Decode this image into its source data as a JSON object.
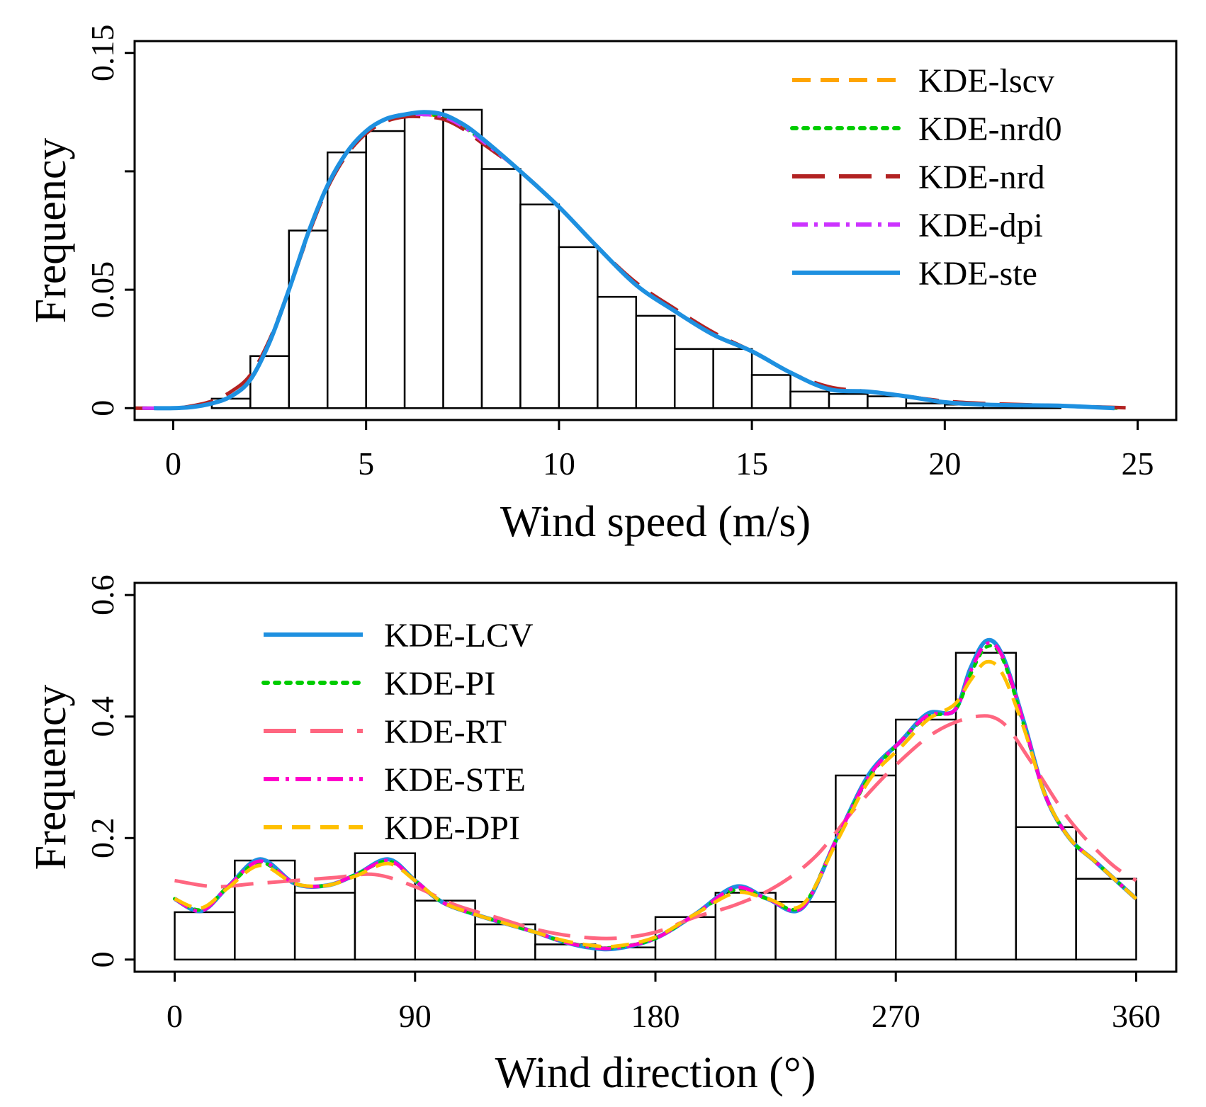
{
  "chart_data": [
    {
      "type": "bar",
      "name": "wind-speed",
      "xlabel": "Wind speed (m/s)",
      "ylabel": "Frequency",
      "xlim": [
        -1,
        26
      ],
      "ylim": [
        -0.005,
        0.155
      ],
      "xticks": [
        0,
        5,
        10,
        15,
        20,
        25
      ],
      "xtick_labels": [
        "0",
        "5",
        "10",
        "15",
        "20",
        "25"
      ],
      "yticks": [
        0,
        0.05,
        0.15
      ],
      "ytick_labels": [
        "0",
        "0.05",
        "0.15"
      ],
      "y_minor_ticks": [
        0.1
      ],
      "grid": false,
      "legend_position": "top-right",
      "bin_edges": [
        1,
        2,
        3,
        4,
        5,
        6,
        7,
        8,
        9,
        10,
        11,
        12,
        13,
        14,
        15,
        16,
        17,
        18,
        19,
        20,
        21,
        22,
        23
      ],
      "values": [
        0.004,
        0.022,
        0.075,
        0.108,
        0.117,
        0.124,
        0.126,
        0.101,
        0.086,
        0.068,
        0.047,
        0.039,
        0.025,
        0.025,
        0.014,
        0.007,
        0.006,
        0.005,
        0.002,
        0.0015,
        0.0012,
        0.0012
      ],
      "series": [
        {
          "name": "KDE-lscv",
          "color": "#FFA500",
          "dash": "dashed",
          "x": [
            -0.8,
            0,
            0.5,
            1,
            1.5,
            2,
            2.5,
            3,
            3.5,
            4,
            4.5,
            5,
            5.5,
            6,
            6.5,
            7,
            7.5,
            8,
            9,
            10,
            11,
            12,
            13,
            14,
            15,
            16,
            17,
            18,
            19,
            20,
            21,
            22,
            23,
            24.5
          ],
          "y": [
            0,
            0,
            0.0005,
            0.002,
            0.005,
            0.012,
            0.028,
            0.05,
            0.074,
            0.094,
            0.108,
            0.117,
            0.122,
            0.124,
            0.124,
            0.123,
            0.119,
            0.113,
            0.1,
            0.085,
            0.068,
            0.052,
            0.041,
            0.031,
            0.024,
            0.015,
            0.008,
            0.007,
            0.005,
            0.0025,
            0.0015,
            0.0012,
            0.001,
            0
          ]
        },
        {
          "name": "KDE-nrd0",
          "color": "#00CC00",
          "dash": "dotted",
          "x": [
            -0.8,
            0,
            0.5,
            1,
            1.5,
            2,
            2.5,
            3,
            3.5,
            4,
            4.5,
            5,
            5.5,
            6,
            6.5,
            7,
            7.5,
            8,
            9,
            10,
            11,
            12,
            13,
            14,
            15,
            16,
            17,
            18,
            19,
            20,
            21,
            22,
            23,
            24.5
          ],
          "y": [
            0,
            0,
            0.0005,
            0.002,
            0.005,
            0.012,
            0.028,
            0.05,
            0.074,
            0.094,
            0.108,
            0.117,
            0.122,
            0.124,
            0.124,
            0.123,
            0.119,
            0.113,
            0.1,
            0.085,
            0.068,
            0.052,
            0.041,
            0.031,
            0.024,
            0.015,
            0.008,
            0.007,
            0.005,
            0.0025,
            0.0015,
            0.0012,
            0.001,
            0
          ]
        },
        {
          "name": "KDE-nrd",
          "color": "#B22222",
          "dash": "longdash",
          "x": [
            -1,
            0,
            0.5,
            1,
            1.5,
            2,
            2.5,
            3,
            3.5,
            4,
            4.5,
            5,
            5.5,
            6,
            6.5,
            7,
            7.5,
            8,
            9,
            10,
            11,
            12,
            13,
            14,
            15,
            16,
            17,
            18,
            19,
            20,
            21,
            22,
            23,
            25
          ],
          "y": [
            0,
            0,
            0.001,
            0.003,
            0.007,
            0.014,
            0.029,
            0.05,
            0.073,
            0.093,
            0.107,
            0.116,
            0.121,
            0.123,
            0.123,
            0.122,
            0.118,
            0.112,
            0.1,
            0.085,
            0.068,
            0.053,
            0.042,
            0.032,
            0.024,
            0.015,
            0.009,
            0.007,
            0.005,
            0.003,
            0.002,
            0.0015,
            0.001,
            0
          ]
        },
        {
          "name": "KDE-dpi",
          "color": "#CC33FF",
          "dash": "dashdot",
          "x": [
            -0.8,
            0,
            0.5,
            1,
            1.5,
            2,
            2.5,
            3,
            3.5,
            4,
            4.5,
            5,
            5.5,
            6,
            6.5,
            7,
            7.5,
            8,
            9,
            10,
            11,
            12,
            13,
            14,
            15,
            16,
            17,
            18,
            19,
            20,
            21,
            22,
            23,
            24.5
          ],
          "y": [
            0,
            0,
            0.0005,
            0.002,
            0.005,
            0.012,
            0.028,
            0.05,
            0.074,
            0.094,
            0.108,
            0.117,
            0.122,
            0.124,
            0.124,
            0.123,
            0.119,
            0.113,
            0.1,
            0.085,
            0.068,
            0.052,
            0.041,
            0.031,
            0.024,
            0.015,
            0.008,
            0.007,
            0.005,
            0.0025,
            0.0015,
            0.0012,
            0.001,
            0
          ]
        },
        {
          "name": "KDE-ste",
          "color": "#1E90E0",
          "dash": "solid",
          "x": [
            -0.5,
            0,
            0.5,
            1,
            1.5,
            2,
            2.5,
            3,
            3.5,
            4,
            4.5,
            5,
            5.5,
            6,
            6.5,
            7,
            7.5,
            8,
            9,
            10,
            11,
            12,
            13,
            14,
            15,
            16,
            17,
            18,
            19,
            20,
            21,
            22,
            23,
            24.4
          ],
          "y": [
            0,
            0,
            0.0005,
            0.002,
            0.005,
            0.012,
            0.028,
            0.05,
            0.074,
            0.094,
            0.108,
            0.117,
            0.122,
            0.124,
            0.125,
            0.124,
            0.12,
            0.114,
            0.1,
            0.085,
            0.068,
            0.052,
            0.041,
            0.031,
            0.024,
            0.015,
            0.008,
            0.007,
            0.005,
            0.0025,
            0.0015,
            0.0012,
            0.001,
            0
          ]
        }
      ]
    },
    {
      "type": "bar",
      "name": "wind-direction",
      "xlabel": "Wind direction (°)",
      "ylabel": "Frequency",
      "xlim": [
        -15,
        375
      ],
      "ylim": [
        -0.02,
        0.62
      ],
      "xticks": [
        0,
        90,
        180,
        270,
        360
      ],
      "xtick_labels": [
        "0",
        "90",
        "180",
        "270",
        "360"
      ],
      "yticks": [
        0,
        0.2,
        0.4,
        0.6
      ],
      "ytick_labels": [
        "0",
        "0.2",
        "0.4",
        "0.6"
      ],
      "grid": false,
      "legend_position": "top-left",
      "bin_edges": [
        0,
        22.5,
        45,
        67.5,
        90,
        112.5,
        135,
        157.5,
        180,
        202.5,
        225,
        247.5,
        270,
        292.5,
        315,
        337.5,
        360
      ],
      "values": [
        0.078,
        0.163,
        0.11,
        0.175,
        0.097,
        0.058,
        0.025,
        0.02,
        0.07,
        0.11,
        0.095,
        0.303,
        0.395,
        0.505,
        0.218,
        0.133
      ],
      "series": [
        {
          "name": "KDE-LCV",
          "color": "#1E90E0",
          "dash": "solid",
          "x": [
            0,
            10,
            20,
            32,
            45,
            57,
            68,
            80,
            90,
            100,
            112,
            125,
            135,
            145,
            155,
            165,
            180,
            195,
            210,
            222,
            235,
            248,
            260,
            272,
            282,
            292,
            298,
            304,
            310,
            318,
            326,
            335,
            345,
            360
          ],
          "y": [
            0.1,
            0.08,
            0.12,
            0.165,
            0.125,
            0.122,
            0.14,
            0.165,
            0.13,
            0.095,
            0.075,
            0.058,
            0.045,
            0.03,
            0.02,
            0.018,
            0.035,
            0.075,
            0.12,
            0.1,
            0.085,
            0.2,
            0.305,
            0.36,
            0.405,
            0.41,
            0.48,
            0.525,
            0.5,
            0.39,
            0.27,
            0.2,
            0.16,
            0.1
          ]
        },
        {
          "name": "KDE-PI",
          "color": "#00CC00",
          "dash": "dotted",
          "x": [
            0,
            10,
            20,
            32,
            45,
            57,
            68,
            80,
            90,
            100,
            112,
            125,
            135,
            145,
            155,
            165,
            180,
            195,
            210,
            222,
            235,
            248,
            260,
            272,
            282,
            292,
            298,
            304,
            310,
            318,
            326,
            335,
            345,
            360
          ],
          "y": [
            0.1,
            0.082,
            0.12,
            0.16,
            0.125,
            0.122,
            0.14,
            0.162,
            0.13,
            0.095,
            0.075,
            0.058,
            0.045,
            0.03,
            0.022,
            0.02,
            0.035,
            0.075,
            0.115,
            0.1,
            0.088,
            0.2,
            0.3,
            0.36,
            0.4,
            0.41,
            0.47,
            0.515,
            0.495,
            0.385,
            0.27,
            0.2,
            0.16,
            0.1
          ]
        },
        {
          "name": "KDE-RT",
          "color": "#FF6680",
          "dash": "longdash",
          "x": [
            0,
            15,
            30,
            45,
            60,
            75,
            90,
            105,
            120,
            135,
            150,
            165,
            180,
            195,
            210,
            225,
            240,
            255,
            270,
            285,
            300,
            310,
            320,
            335,
            350,
            360
          ],
          "y": [
            0.13,
            0.12,
            0.125,
            0.13,
            0.135,
            0.14,
            0.12,
            0.09,
            0.07,
            0.05,
            0.038,
            0.035,
            0.045,
            0.07,
            0.09,
            0.12,
            0.17,
            0.25,
            0.32,
            0.375,
            0.4,
            0.39,
            0.33,
            0.23,
            0.16,
            0.13
          ]
        },
        {
          "name": "KDE-STE",
          "color": "#FF00CC",
          "dash": "dashdot",
          "x": [
            0,
            10,
            20,
            32,
            45,
            57,
            68,
            80,
            90,
            100,
            112,
            125,
            135,
            145,
            155,
            165,
            180,
            195,
            210,
            222,
            235,
            248,
            260,
            272,
            282,
            292,
            298,
            304,
            310,
            318,
            326,
            335,
            345,
            360
          ],
          "y": [
            0.1,
            0.08,
            0.12,
            0.162,
            0.125,
            0.122,
            0.14,
            0.163,
            0.13,
            0.095,
            0.075,
            0.058,
            0.045,
            0.03,
            0.021,
            0.019,
            0.035,
            0.075,
            0.118,
            0.1,
            0.086,
            0.2,
            0.302,
            0.36,
            0.402,
            0.41,
            0.475,
            0.52,
            0.498,
            0.388,
            0.27,
            0.2,
            0.16,
            0.1
          ]
        },
        {
          "name": "KDE-DPI",
          "color": "#FFC000",
          "dash": "dashed",
          "x": [
            0,
            10,
            20,
            32,
            45,
            57,
            68,
            80,
            90,
            100,
            112,
            125,
            135,
            145,
            155,
            165,
            180,
            195,
            210,
            222,
            235,
            248,
            260,
            272,
            282,
            292,
            298,
            304,
            310,
            318,
            326,
            335,
            345,
            360
          ],
          "y": [
            0.1,
            0.085,
            0.118,
            0.155,
            0.125,
            0.122,
            0.138,
            0.158,
            0.13,
            0.095,
            0.075,
            0.058,
            0.045,
            0.032,
            0.024,
            0.022,
            0.037,
            0.075,
            0.11,
            0.1,
            0.09,
            0.195,
            0.295,
            0.35,
            0.395,
            0.42,
            0.46,
            0.49,
            0.47,
            0.38,
            0.27,
            0.2,
            0.16,
            0.1
          ]
        }
      ]
    }
  ]
}
